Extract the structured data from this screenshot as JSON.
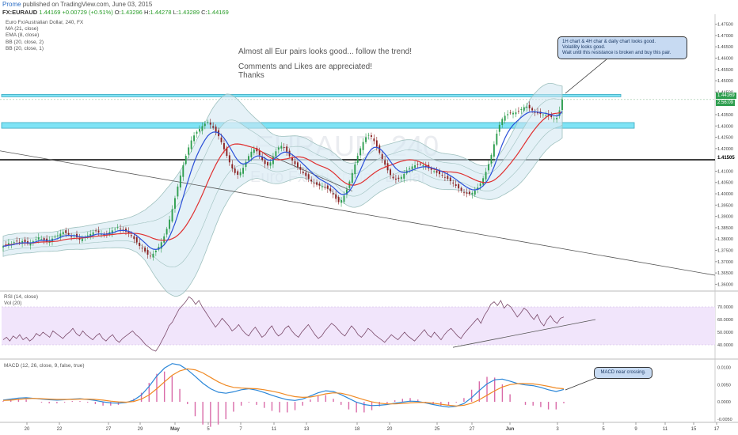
{
  "header": {
    "brand": "Prome",
    "published": "published on TradingView.com, June 03, 2015",
    "symbol": "FX:EURAUD",
    "last": "1.44169",
    "change": "+0.00729 (+0.51%)",
    "o_label": "O:",
    "o_value": "1.43296",
    "h_label": "H:",
    "h_value": "1.44278",
    "l_label": "L:",
    "l_value": "1.43289",
    "c_label": "C:",
    "c_value": "1.44169"
  },
  "legend": [
    "Euro Fx/Australian Dollar, 240, FX",
    "MA (21, close)",
    "EMA (8, close)",
    "BB (20, close, 2)",
    "BB (20, close, 1)"
  ],
  "watermark": {
    "symbol": "EURAUD, 240",
    "name": "Euro Fx/Australian Dollar"
  },
  "idea_text": {
    "line1": "Almost all Eur pairs looks good... follow the trend!",
    "line2": "Comments and Likes are appreciated!",
    "line3": "Thanks"
  },
  "callouts": {
    "main": [
      "1H chart & 4H char & daily chart looks good.",
      "Volatility looks good.",
      "Wait until this resistance is broken and buy this pair."
    ],
    "macd": "MACD near crossing."
  },
  "price_tags": {
    "last": "1.44169",
    "time": "2:56:09",
    "support": "1.41505"
  },
  "rsi_legend": {
    "line1": "RSI (14, close)",
    "line2": "Vol (20)"
  },
  "macd_legend": "MACD (12, 26, close, 9, false, true)",
  "colors": {
    "up": "#2e9e4f",
    "down": "#8a2222",
    "ma": "#e03030",
    "ema": "#2a4fd8",
    "bb": "#9fc1bf",
    "zone": "#7fe3f5",
    "rsi_band": "#f1e5fb",
    "macd_line": "#2a86d8",
    "signal_line": "#f08a24",
    "hist": "#d96aa8"
  },
  "chart_data": [
    {
      "type": "candlestick",
      "title": "Euro Fx/Australian Dollar, 240, FX",
      "x_ticks": [
        "20",
        "22",
        "27",
        "29",
        "May",
        "5",
        "7",
        "11",
        "13",
        "18",
        "20",
        "25",
        "27",
        "Jun",
        "3",
        "5",
        "9",
        "11",
        "15",
        "17"
      ],
      "y_ticks": [
        "1.47500",
        "1.47000",
        "1.46500",
        "1.46000",
        "1.45500",
        "1.45000",
        "1.44500",
        "1.43500",
        "1.43000",
        "1.42500",
        "1.42000",
        "1.41000",
        "1.40500",
        "1.40000",
        "1.39500",
        "1.39000",
        "1.38500",
        "1.38000",
        "1.37500",
        "1.37000",
        "1.36500",
        "1.36000"
      ],
      "ylim": [
        1.357,
        1.478
      ],
      "close_series": [
        1.3768,
        1.3775,
        1.3782,
        1.3778,
        1.3786,
        1.3792,
        1.3784,
        1.3791,
        1.3787,
        1.3779,
        1.3783,
        1.379,
        1.3799,
        1.3807,
        1.3801,
        1.3795,
        1.3788,
        1.3794,
        1.3802,
        1.381,
        1.3816,
        1.3824,
        1.3831,
        1.3826,
        1.3819,
        1.3811,
        1.3815,
        1.3808,
        1.3797,
        1.3802,
        1.3809,
        1.3816,
        1.3822,
        1.383,
        1.3836,
        1.3829,
        1.3822,
        1.3817,
        1.3823,
        1.3831,
        1.3838,
        1.3845,
        1.3852,
        1.3846,
        1.3839,
        1.3833,
        1.3825,
        1.3813,
        1.38,
        1.3785,
        1.3769,
        1.3758,
        1.3745,
        1.3731,
        1.3724,
        1.3735,
        1.3749,
        1.3765,
        1.3786,
        1.3812,
        1.3845,
        1.3886,
        1.3932,
        1.3981,
        1.4032,
        1.4081,
        1.4126,
        1.4168,
        1.4205,
        1.4236,
        1.4258,
        1.4274,
        1.4287,
        1.4299,
        1.431,
        1.4318,
        1.4306,
        1.4292,
        1.4275,
        1.4255,
        1.4228,
        1.4197,
        1.4168,
        1.4139,
        1.4112,
        1.4092,
        1.4084,
        1.4096,
        1.4115,
        1.4141,
        1.4167,
        1.4186,
        1.4196,
        1.4188,
        1.4171,
        1.415,
        1.4132,
        1.4125,
        1.4139,
        1.4163,
        1.4188,
        1.4205,
        1.4212,
        1.4203,
        1.4186,
        1.4166,
        1.4147,
        1.4131,
        1.4118,
        1.4106,
        1.4092,
        1.4079,
        1.4066,
        1.4055,
        1.4046,
        1.404,
        1.4036,
        1.4033,
        1.4029,
        1.4022,
        1.4011,
        1.3997,
        1.3978,
        1.3963,
        1.3972,
        1.3992,
        1.4019,
        1.4054,
        1.4092,
        1.413,
        1.4168,
        1.4201,
        1.4229,
        1.425,
        1.426,
        1.4252,
        1.4233,
        1.4208,
        1.4181,
        1.4154,
        1.4129,
        1.4104,
        1.4083,
        1.4069,
        1.4063,
        1.4066,
        1.4075,
        1.4088,
        1.4102,
        1.4113,
        1.4121,
        1.4126,
        1.4129,
        1.413,
        1.4127,
        1.412,
        1.4112,
        1.4106,
        1.41,
        1.4093,
        1.4087,
        1.4081,
        1.4074,
        1.4066,
        1.4056,
        1.4046,
        1.4035,
        1.4024,
        1.4014,
        1.4006,
        1.4001,
        1.3999,
        1.4004,
        1.4014,
        1.4028,
        1.4046,
        1.4069,
        1.4097,
        1.4131,
        1.4172,
        1.4219,
        1.4266,
        1.4305,
        1.4331,
        1.4345,
        1.4352,
        1.4356,
        1.4358,
        1.436,
        1.4366,
        1.4375,
        1.4383,
        1.4385,
        1.4378,
        1.4369,
        1.4361,
        1.4356,
        1.4353,
        1.4351,
        1.4348,
        1.4344,
        1.4339,
        1.4333,
        1.4336,
        1.4369,
        1.4417
      ],
      "ma_21_start": 1.379,
      "ema_8_start": 1.3775,
      "bb_width_series": [
        0.0045,
        0.0045,
        0.0045,
        0.0044,
        0.0043,
        0.0042,
        0.0042,
        0.0043,
        0.0045,
        0.0047,
        0.0049,
        0.0051,
        0.0053,
        0.0055,
        0.0057,
        0.006,
        0.0063,
        0.007,
        0.0085,
        0.011,
        0.015,
        0.019,
        0.023,
        0.026,
        0.028,
        0.029,
        0.0295,
        0.029,
        0.028,
        0.026,
        0.024,
        0.021,
        0.018,
        0.015,
        0.013,
        0.012,
        0.011,
        0.0105,
        0.01,
        0.0095,
        0.009,
        0.0088,
        0.0087,
        0.0087,
        0.0088,
        0.009,
        0.0094,
        0.0098,
        0.01,
        0.0102,
        0.0101,
        0.0098,
        0.0095,
        0.0092,
        0.009,
        0.0088,
        0.0086,
        0.0084,
        0.0082,
        0.008,
        0.0078,
        0.0076,
        0.0074,
        0.0073,
        0.0072,
        0.0075,
        0.0085,
        0.01,
        0.012,
        0.014,
        0.0155,
        0.016,
        0.0155,
        0.0145,
        0.013,
        0.0115
      ],
      "resistance_zone": [
        1.429,
        1.4315
      ],
      "upper_zone": [
        1.443,
        1.4436
      ],
      "support_level": 1.41505,
      "last_price": 1.44169
    },
    {
      "type": "line",
      "title": "RSI (14, close)",
      "y_ticks": [
        "70.0000",
        "60.0000",
        "50.0000",
        "40.0000"
      ],
      "ylim": [
        30,
        80
      ],
      "band": [
        40,
        70
      ],
      "values": [
        44,
        46,
        43,
        47,
        45,
        48,
        44,
        46,
        43,
        45,
        49,
        47,
        50,
        48,
        46,
        51,
        49,
        47,
        45,
        48,
        50,
        53,
        49,
        47,
        51,
        48,
        46,
        44,
        47,
        49,
        45,
        43,
        46,
        48,
        44,
        42,
        45,
        47,
        49,
        51,
        48,
        46,
        43,
        40,
        38,
        36,
        35,
        39,
        44,
        49,
        55,
        58,
        63,
        68,
        71,
        74,
        78,
        76,
        72,
        75,
        70,
        66,
        62,
        58,
        54,
        57,
        61,
        58,
        55,
        51,
        53,
        56,
        52,
        49,
        47,
        51,
        54,
        50,
        46,
        48,
        52,
        55,
        50,
        47,
        49,
        53,
        55,
        51,
        48,
        46,
        50,
        53,
        56,
        52,
        48,
        45,
        47,
        51,
        54,
        57,
        55,
        52,
        49,
        47,
        51,
        55,
        52,
        48,
        46,
        49,
        53,
        51,
        48,
        46,
        44,
        42,
        45,
        48,
        46,
        44,
        47,
        50,
        47,
        45,
        43,
        46,
        49,
        52,
        48,
        46,
        50,
        47,
        44,
        48,
        51,
        53,
        50,
        47,
        45,
        49,
        52,
        55,
        58,
        61,
        57,
        63,
        67,
        72,
        74,
        71,
        75,
        69,
        72,
        70,
        66,
        62,
        65,
        69,
        67,
        63,
        60,
        64,
        58,
        55,
        60,
        63,
        59,
        57,
        61,
        62
      ]
    },
    {
      "type": "line",
      "title": "MACD (12, 26, close, 9, false, true)",
      "y_ticks": [
        "0.0100",
        "0.0050",
        "0.0000",
        "-0.0050"
      ],
      "ylim": [
        -0.0055,
        0.0115
      ],
      "series": [
        {
          "name": "MACD",
          "values": [
            0.0005,
            0.0008,
            0.0011,
            0.0012,
            0.001,
            0.0008,
            0.0006,
            0.0005,
            0.0006,
            0.0008,
            0.0009,
            0.0007,
            0.0004,
            0.0,
            -0.0003,
            -0.0004,
            -0.0002,
            0.0005,
            0.002,
            0.0045,
            0.0075,
            0.0098,
            0.0111,
            0.0107,
            0.0093,
            0.0074,
            0.0054,
            0.0038,
            0.0028,
            0.0025,
            0.0029,
            0.0035,
            0.0038,
            0.0034,
            0.0027,
            0.0019,
            0.0012,
            0.0006,
            0.0004,
            0.0008,
            0.0017,
            0.0026,
            0.0032,
            0.003,
            0.0021,
            0.001,
            -0.0001,
            -0.0008,
            -0.0011,
            -0.001,
            -0.0008,
            -0.0004,
            -0.0001,
            0.0002,
            0.0001,
            -0.0003,
            -0.0008,
            -0.0012,
            -0.0015,
            -0.0013,
            -0.0005,
            0.0012,
            0.0033,
            0.0052,
            0.0064,
            0.0066,
            0.006,
            0.0053,
            0.0049,
            0.0047,
            0.0042,
            0.0035,
            0.003,
            0.0036
          ]
        },
        {
          "name": "Signal",
          "values": [
            0.0004,
            0.0005,
            0.0007,
            0.0009,
            0.001,
            0.0009,
            0.0008,
            0.0007,
            0.0007,
            0.0007,
            0.0008,
            0.0008,
            0.0007,
            0.0005,
            0.0002,
            0.0,
            -0.0001,
            0.0001,
            0.0008,
            0.002,
            0.0038,
            0.0058,
            0.0077,
            0.009,
            0.0096,
            0.0093,
            0.0084,
            0.0071,
            0.0058,
            0.0048,
            0.0042,
            0.004,
            0.0039,
            0.0038,
            0.0035,
            0.0031,
            0.0026,
            0.002,
            0.0015,
            0.0013,
            0.0014,
            0.0018,
            0.0023,
            0.0026,
            0.0025,
            0.002,
            0.0013,
            0.0006,
            0.0,
            -0.0004,
            -0.0006,
            -0.0006,
            -0.0005,
            -0.0003,
            -0.0002,
            -0.0002,
            -0.0004,
            -0.0007,
            -0.001,
            -0.0012,
            -0.001,
            -0.0004,
            0.0006,
            0.0019,
            0.0032,
            0.0043,
            0.005,
            0.0053,
            0.0053,
            0.0052,
            0.0049,
            0.0045,
            0.004,
            0.0038
          ]
        }
      ]
    }
  ]
}
